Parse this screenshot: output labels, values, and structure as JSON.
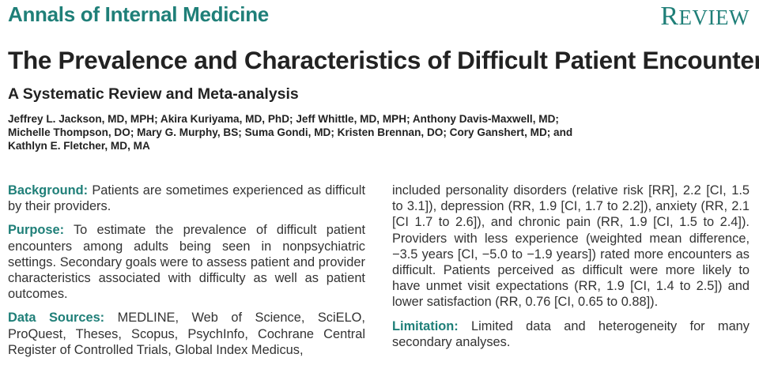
{
  "header": {
    "journal_name": "Annals of Internal Medicine",
    "section_first": "R",
    "section_rest": "EVIEW"
  },
  "article": {
    "title": "The Prevalence and Characteristics of Difficult Patient Encounters",
    "subtitle": "A Systematic Review and Meta-analysis",
    "author_lines": [
      "Jeffrey L. Jackson, MD, MPH; Akira Kuriyama, MD, PhD; Jeff Whittle, MD, MPH; Anthony Davis-Maxwell, MD;",
      "Michelle Thompson, DO; Mary G. Murphy, BS; Suma Gondi, MD; Kristen Brennan, DO; Cory Ganshert, MD; and",
      "Kathlyn E. Fletcher, MD, MA"
    ]
  },
  "abstract": {
    "background": {
      "label": "Background:",
      "text": " Patients are sometimes experienced as difficult by their providers."
    },
    "purpose": {
      "label": "Purpose:",
      "text": " To estimate the prevalence of difficult patient encounters among adults being seen in nonpsychiatric settings. Secondary goals were to assess patient and provider characteristics associated with difficulty as well as patient outcomes."
    },
    "data_sources": {
      "label": "Data Sources:",
      "text": " MEDLINE, Web of Science, SciELO, ProQuest, Theses, Scopus, PsychInfo, Cochrane Central Register of Controlled Trials, Global Index Medicus,"
    },
    "results_continued": "included personality disorders (relative risk [RR], 2.2 [CI, 1.5 to 3.1]), depression (RR, 1.9 [CI, 1.7 to 2.2]), anxiety (RR, 2.1 [CI 1.7 to 2.6]), and chronic pain (RR, 1.9 [CI, 1.5 to 2.4]). Providers with less experience (weighted mean difference, −3.5 years [CI, −5.0 to −1.9 years]) rated more encounters as difficult. Patients perceived as difficult were more likely to have unmet visit expectations (RR, 1.9 [CI, 1.4 to 2.5]) and lower satisfaction (RR, 0.76 [CI, 0.65 to 0.88]).",
    "limitation": {
      "label": "Limitation:",
      "text": " Limited data and heterogeneity for many secondary analyses."
    }
  }
}
